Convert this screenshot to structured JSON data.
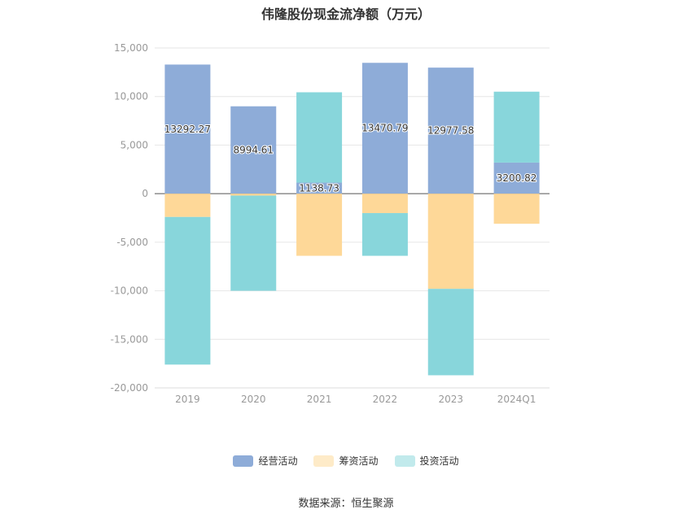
{
  "chart_data": {
    "type": "bar",
    "stacked": true,
    "title": "伟隆股份现金流净额（万元）",
    "categories": [
      "2019",
      "2020",
      "2021",
      "2022",
      "2023",
      "2024Q1"
    ],
    "ylim": [
      -20000,
      15000
    ],
    "yticks": [
      "15,000",
      "10,000",
      "5,000",
      "0",
      "-5,000",
      "-10,000",
      "-15,000",
      "-20,000"
    ],
    "ytick_values": [
      15000,
      10000,
      5000,
      0,
      -5000,
      -10000,
      -15000,
      -20000
    ],
    "grid": true,
    "legend_position": "bottom",
    "series": [
      {
        "name": "经营活动",
        "color": "#8eacd8",
        "values": [
          13292.27,
          8994.61,
          1138.73,
          13470.79,
          12977.58,
          3200.82
        ],
        "labels": [
          "13292.27",
          "8994.61",
          "1138.73",
          "13470.79",
          "12977.58",
          "3200.82"
        ]
      },
      {
        "name": "筹资活动",
        "color": "#fed898",
        "values": [
          -2400,
          -200,
          -6400,
          -2000,
          -9800,
          -3100
        ]
      },
      {
        "name": "投资活动",
        "color": "#88d6db",
        "values": [
          -15200,
          -9800,
          9300,
          -4400,
          -8900,
          7300
        ]
      }
    ],
    "legend_colors": [
      "#8eacd8",
      "#feebc8",
      "#c1eaec"
    ]
  },
  "source_text": "数据来源：恒生聚源"
}
